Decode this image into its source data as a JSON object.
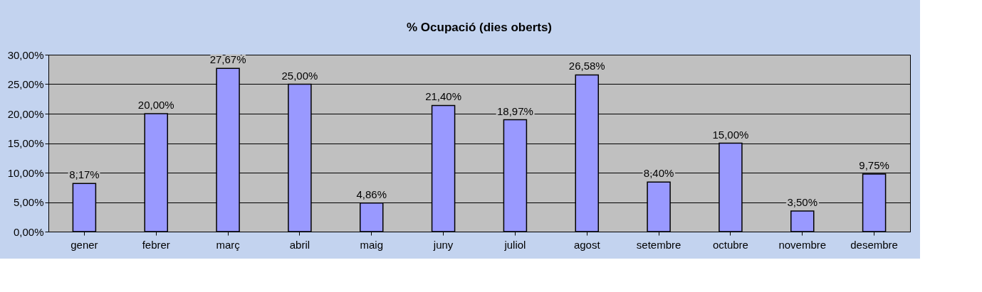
{
  "chart_data": {
    "type": "bar",
    "title": "% Ocupació (dies oberts)",
    "categories": [
      "gener",
      "febrer",
      "març",
      "abril",
      "maig",
      "juny",
      "juliol",
      "agost",
      "setembre",
      "octubre",
      "novembre",
      "desembre"
    ],
    "values": [
      8.17,
      20.0,
      27.67,
      25.0,
      4.86,
      21.4,
      18.97,
      26.58,
      8.4,
      15.0,
      3.5,
      9.75
    ],
    "value_labels": [
      "8,17%",
      "20,00%",
      "27,67%",
      "25,00%",
      "4,86%",
      "21,40%",
      "18,97%",
      "26,58%",
      "8,40%",
      "15,00%",
      "3,50%",
      "9,75%"
    ],
    "color": "#9999ff",
    "ylim": [
      0,
      30
    ],
    "yticks": [
      {
        "value": 0,
        "label": "0,00%"
      },
      {
        "value": 5,
        "label": "5,00%"
      },
      {
        "value": 10,
        "label": "10,00%"
      },
      {
        "value": 15,
        "label": "15,00%"
      },
      {
        "value": 20,
        "label": "20,00%"
      },
      {
        "value": 25,
        "label": "25,00%"
      },
      {
        "value": 30,
        "label": "30,00%"
      }
    ],
    "grid": "y"
  }
}
